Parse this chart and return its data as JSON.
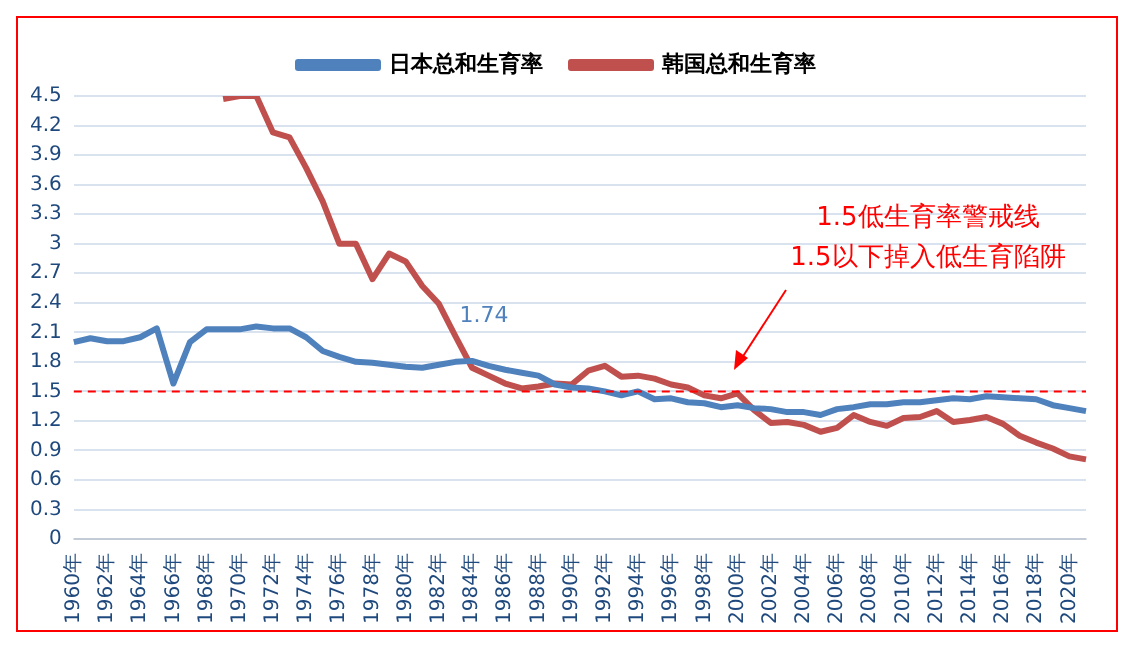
{
  "chart_data": {
    "type": "line",
    "categories": [
      "1960年",
      null,
      "1962年",
      null,
      "1964年",
      null,
      "1966年",
      null,
      "1968年",
      null,
      "1970年",
      null,
      "1972年",
      null,
      "1974年",
      null,
      "1976年",
      null,
      "1978年",
      null,
      "1980年",
      null,
      "1982年",
      null,
      "1984年",
      null,
      "1986年",
      null,
      "1988年",
      null,
      "1990年",
      null,
      "1992年",
      null,
      "1994年",
      null,
      "1996年",
      null,
      "1998年",
      null,
      "2000年",
      null,
      "2002年",
      null,
      "2004年",
      null,
      "2006年",
      null,
      "2008年",
      null,
      "2010年",
      null,
      "2012年",
      null,
      "2014年",
      null,
      "2016年",
      null,
      "2018年",
      null,
      "2020年",
      null
    ],
    "series": [
      {
        "name": "日本总和生育率",
        "color": "#4f81bd",
        "values": [
          2.0,
          2.04,
          2.01,
          2.01,
          2.05,
          2.14,
          1.58,
          2.0,
          2.13,
          2.13,
          2.13,
          2.16,
          2.14,
          2.14,
          2.05,
          1.91,
          1.85,
          1.8,
          1.79,
          1.77,
          1.75,
          1.74,
          1.77,
          1.8,
          1.81,
          1.76,
          1.72,
          1.69,
          1.66,
          1.57,
          1.54,
          1.53,
          1.5,
          1.46,
          1.5,
          1.42,
          1.43,
          1.39,
          1.38,
          1.34,
          1.36,
          1.33,
          1.32,
          1.29,
          1.29,
          1.26,
          1.32,
          1.34,
          1.37,
          1.37,
          1.39,
          1.39,
          1.41,
          1.43,
          1.42,
          1.45,
          1.44,
          1.43,
          1.42,
          1.36,
          1.33,
          1.3
        ]
      },
      {
        "name": "韩国总和生育率",
        "color": "#c0504d",
        "values": [
          null,
          null,
          null,
          null,
          null,
          null,
          null,
          null,
          null,
          4.47,
          4.5,
          4.5,
          4.13,
          4.08,
          3.77,
          3.43,
          3.0,
          3.0,
          2.64,
          2.9,
          2.82,
          2.57,
          2.39,
          2.06,
          1.74,
          1.66,
          1.58,
          1.53,
          1.55,
          1.58,
          1.57,
          1.71,
          1.76,
          1.65,
          1.66,
          1.63,
          1.57,
          1.54,
          1.46,
          1.43,
          1.48,
          1.31,
          1.18,
          1.19,
          1.16,
          1.09,
          1.13,
          1.26,
          1.19,
          1.15,
          1.23,
          1.24,
          1.3,
          1.19,
          1.21,
          1.24,
          1.17,
          1.05,
          0.98,
          0.92,
          0.84,
          0.81
        ]
      }
    ],
    "ylim": [
      0,
      4.5
    ],
    "yticks": [
      0,
      0.3,
      0.6,
      0.9,
      1.2,
      1.5,
      1.8,
      2.1,
      2.4,
      2.7,
      3,
      3.3,
      3.6,
      3.9,
      4.2,
      4.5
    ],
    "grid": "y",
    "legend": "top",
    "marker": "none",
    "line_style": "solid",
    "ref_lines": [
      {
        "axis": "y",
        "value": 1.5,
        "color": "#ff0000",
        "line_style": "dashed"
      }
    ],
    "annotations": [
      {
        "text": "1.74",
        "x": "1984年",
        "y": 1.74
      },
      "1.5低生育率警戒线",
      "1.5以下掉入低生育陷阱"
    ]
  }
}
